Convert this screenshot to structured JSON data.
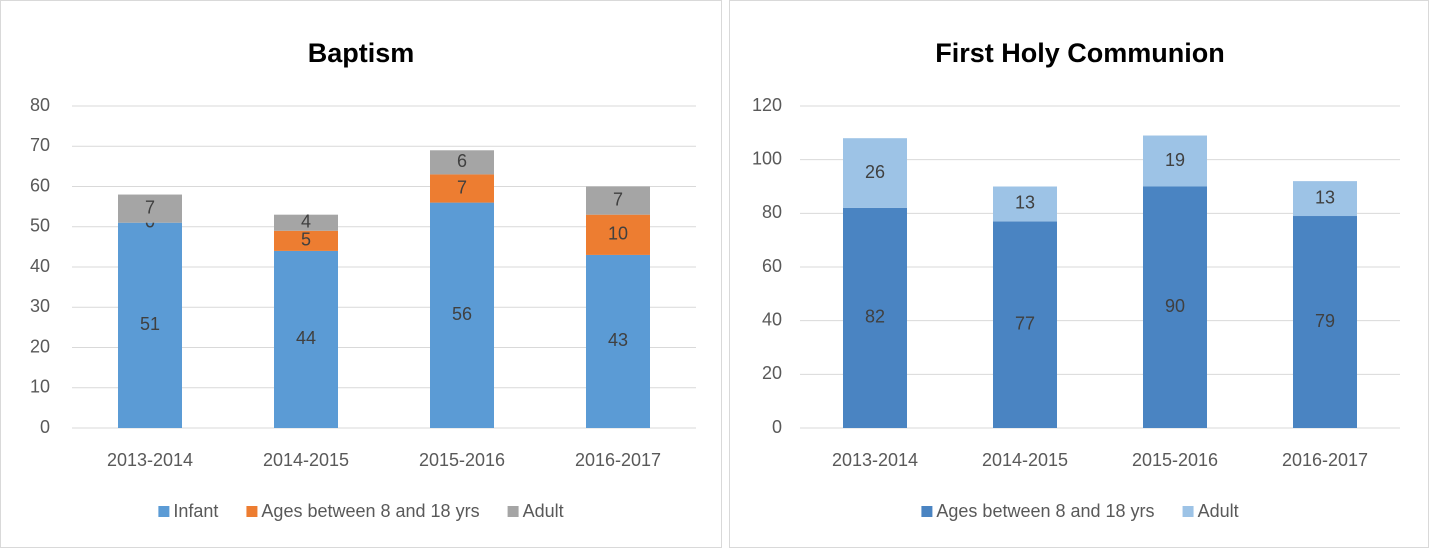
{
  "chart_data": [
    {
      "type": "stacked_bar",
      "title": "Baptism",
      "categories": [
        "2013-2014",
        "2014-2015",
        "2015-2016",
        "2016-2017"
      ],
      "series": [
        {
          "name": "Infant",
          "color": "#5b9bd5",
          "values": [
            51,
            44,
            56,
            43
          ]
        },
        {
          "name": "Ages between 8 and 18 yrs",
          "color": "#ed7d31",
          "values": [
            0,
            5,
            7,
            10
          ]
        },
        {
          "name": "Adult",
          "color": "#a5a5a5",
          "values": [
            7,
            4,
            6,
            7
          ]
        }
      ],
      "ylim": [
        0,
        80
      ],
      "yticks": [
        0,
        10,
        20,
        30,
        40,
        50,
        60,
        70,
        80
      ],
      "grid": true,
      "legend": "bottom"
    },
    {
      "type": "stacked_bar",
      "title": "First Holy Communion",
      "categories": [
        "2013-2014",
        "2014-2015",
        "2015-2016",
        "2016-2017"
      ],
      "series": [
        {
          "name": "Ages between 8 and 18 yrs",
          "color": "#4a84c2",
          "values": [
            82,
            77,
            90,
            79
          ]
        },
        {
          "name": "Adult",
          "color": "#9dc3e6",
          "values": [
            26,
            13,
            19,
            13
          ]
        }
      ],
      "ylim": [
        0,
        120
      ],
      "yticks": [
        0,
        20,
        40,
        60,
        80,
        100,
        120
      ],
      "grid": true,
      "legend": "bottom"
    }
  ]
}
